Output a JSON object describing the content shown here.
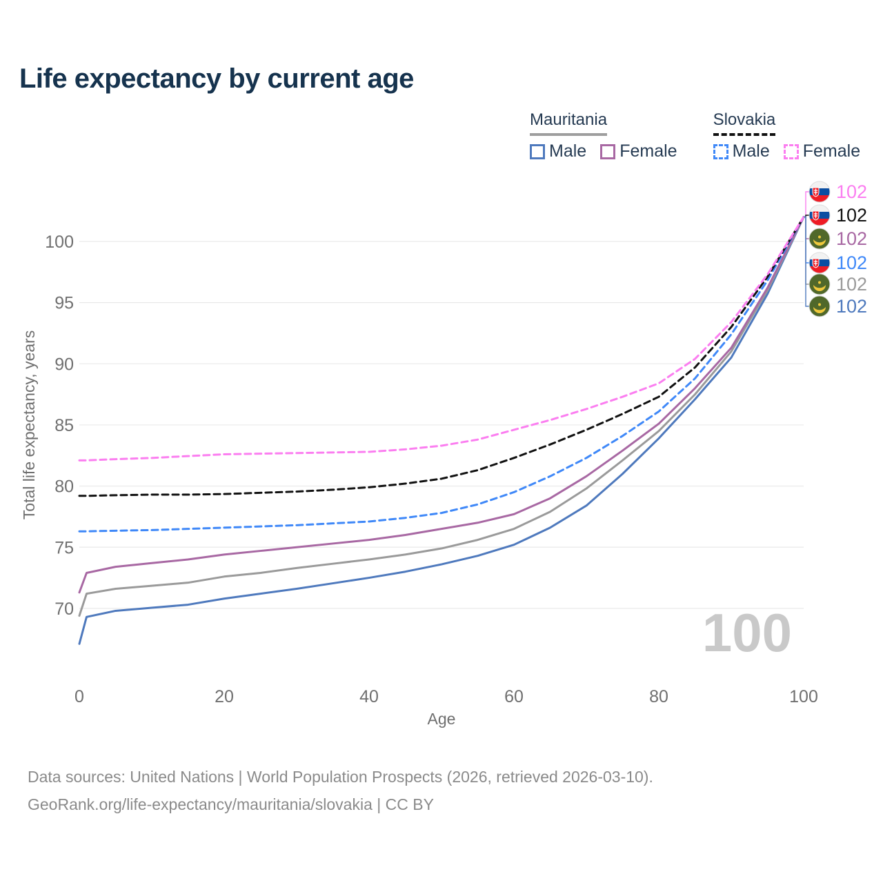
{
  "page": {
    "title": "Life expectancy by current age",
    "watermark_age": "100",
    "footer_line1": "Data sources: United Nations | World Population Prospects (2026, retrieved 2026-03-10).",
    "footer_line2": "GeoRank.org/life-expectancy/mauritania/slovakia | CC BY"
  },
  "colors": {
    "title_text": "#16334e",
    "legend_text": "#253a52",
    "axis_text": "#6f6f6f",
    "grid": "#e9e9e9",
    "footer_text": "#8a8a8a",
    "watermark": "#c9c9c9",
    "mauritania_male": "#4e79bd",
    "mauritania_female": "#a868a3",
    "mauritania_both": "#9a9a9a",
    "slovakia_male": "#3f88f8",
    "slovakia_female": "#fb7ef0",
    "slovakia_both": "#111111"
  },
  "legend": {
    "groups": [
      {
        "label": "Mauritania",
        "underline_style": "solid",
        "underline_color": "#9e9e9e",
        "items": [
          {
            "label": "Male",
            "color": "#4e79bd",
            "dash": false
          },
          {
            "label": "Female",
            "color": "#a868a3",
            "dash": false
          }
        ]
      },
      {
        "label": "Slovakia",
        "underline_style": "dashed",
        "underline_color": "#111111",
        "items": [
          {
            "label": "Male",
            "color": "#3f88f8",
            "dash": true
          },
          {
            "label": "Female",
            "color": "#fb7ef0",
            "dash": true
          }
        ]
      }
    ]
  },
  "chart_data": {
    "type": "line",
    "title": "Life expectancy by current age",
    "xlabel": "Age",
    "ylabel": "Total life expectancy, years",
    "x_ticks": [
      0,
      20,
      40,
      60,
      80,
      100
    ],
    "y_ticks": [
      70,
      75,
      80,
      85,
      90,
      95,
      100
    ],
    "xlim": [
      0,
      100
    ],
    "ylim": [
      66,
      103
    ],
    "grid": true,
    "legend_position": "top-right",
    "hovered_age": "100",
    "ages": [
      0,
      1,
      5,
      10,
      15,
      20,
      25,
      30,
      35,
      40,
      45,
      50,
      55,
      60,
      65,
      70,
      75,
      80,
      85,
      90,
      95,
      100
    ],
    "series": [
      {
        "id": "mauritania-male",
        "country": "Mauritania",
        "sex": "Male",
        "color": "#4e79bd",
        "dash": false,
        "end_label": "102",
        "values": [
          67.1,
          69.3,
          69.8,
          70.05,
          70.3,
          70.8,
          71.2,
          71.6,
          72.05,
          72.5,
          73.0,
          73.6,
          74.3,
          75.2,
          76.6,
          78.4,
          81.0,
          83.9,
          87.1,
          90.5,
          95.7,
          102
        ]
      },
      {
        "id": "mauritania-both",
        "country": "Mauritania",
        "sex": "Both sexes",
        "color": "#9a9a9a",
        "dash": false,
        "end_label": "102",
        "values": [
          69.4,
          71.2,
          71.6,
          71.85,
          72.1,
          72.6,
          72.9,
          73.3,
          73.65,
          74.0,
          74.4,
          74.9,
          75.6,
          76.5,
          77.9,
          79.8,
          82.1,
          84.5,
          87.5,
          91.0,
          96.0,
          102
        ]
      },
      {
        "id": "mauritania-female",
        "country": "Mauritania",
        "sex": "Female",
        "color": "#a868a3",
        "dash": false,
        "end_label": "102",
        "values": [
          71.3,
          72.9,
          73.4,
          73.7,
          74.0,
          74.4,
          74.7,
          75.0,
          75.3,
          75.6,
          76.0,
          76.5,
          77.0,
          77.7,
          79.0,
          80.8,
          82.9,
          85.1,
          88.0,
          91.3,
          96.2,
          102
        ]
      },
      {
        "id": "slovakia-male",
        "country": "Slovakia",
        "sex": "Male",
        "color": "#3f88f8",
        "dash": true,
        "end_label": "102",
        "values": [
          76.3,
          76.3,
          76.35,
          76.4,
          76.5,
          76.6,
          76.7,
          76.8,
          76.95,
          77.1,
          77.4,
          77.8,
          78.5,
          79.5,
          80.8,
          82.3,
          84.1,
          86.1,
          88.8,
          92.4,
          96.8,
          102
        ]
      },
      {
        "id": "slovakia-both",
        "country": "Slovakia",
        "sex": "Both sexes",
        "color": "#111111",
        "dash": true,
        "end_label": "102",
        "values": [
          79.2,
          79.2,
          79.25,
          79.3,
          79.3,
          79.35,
          79.45,
          79.55,
          79.7,
          79.9,
          80.2,
          80.6,
          81.3,
          82.3,
          83.4,
          84.6,
          85.9,
          87.3,
          89.7,
          93.0,
          97.1,
          102
        ]
      },
      {
        "id": "slovakia-female",
        "country": "Slovakia",
        "sex": "Female",
        "color": "#fb7ef0",
        "dash": true,
        "end_label": "102",
        "values": [
          82.1,
          82.1,
          82.2,
          82.3,
          82.45,
          82.6,
          82.65,
          82.7,
          82.75,
          82.8,
          83.0,
          83.3,
          83.8,
          84.6,
          85.4,
          86.3,
          87.3,
          88.4,
          90.4,
          93.4,
          97.3,
          102
        ]
      }
    ],
    "end_labels": [
      {
        "series": "slovakia-female",
        "flag": "slovakia",
        "row_y": 278
      },
      {
        "series": "slovakia-both",
        "flag": "slovakia",
        "row_y": 312
      },
      {
        "series": "mauritania-female",
        "flag": "mauritania",
        "row_y": 346
      },
      {
        "series": "slovakia-male",
        "flag": "slovakia",
        "row_y": 381
      },
      {
        "series": "mauritania-both",
        "flag": "mauritania",
        "row_y": 412
      },
      {
        "series": "mauritania-male",
        "flag": "mauritania",
        "row_y": 444
      }
    ]
  }
}
